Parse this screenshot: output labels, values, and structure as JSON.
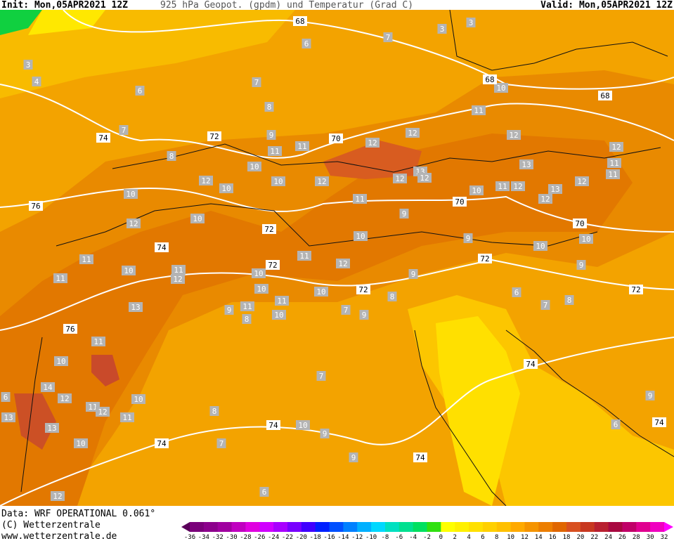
{
  "header": {
    "init": "Init: Mon,05APR2021 12Z",
    "title": "925 hPa Geopot. (gpdm) und Temperatur (Grad C)",
    "valid": "Valid: Mon,05APR2021 12Z"
  },
  "footer": {
    "data": "Data: WRF OPERATIONAL 0.061°",
    "copyright": "(C) Wetterzentrale",
    "url": "www.wetterzentrale.de"
  },
  "colorbar": {
    "labels": [
      -36,
      -34,
      -32,
      -30,
      -28,
      -26,
      -24,
      -22,
      -20,
      -18,
      -16,
      -14,
      -12,
      -10,
      -8,
      -6,
      -4,
      -2,
      0,
      2,
      4,
      6,
      8,
      10,
      12,
      14,
      16,
      18,
      20,
      22,
      24,
      26,
      28,
      30,
      32
    ]
  },
  "map": {
    "geopotential_labels": [
      68,
      68,
      68,
      74,
      72,
      70,
      76,
      74,
      72,
      72,
      72,
      70,
      70,
      72,
      72,
      76,
      74,
      74,
      74,
      74,
      74
    ],
    "temperature_labels": [
      7,
      6,
      3,
      3,
      3,
      4,
      6,
      7,
      8,
      7,
      8,
      9,
      11,
      11,
      12,
      12,
      11,
      10,
      12,
      12,
      11,
      11,
      13,
      12,
      13,
      12,
      11,
      12,
      10,
      13,
      12,
      12,
      12,
      11,
      10,
      10,
      10,
      12,
      10,
      10,
      12,
      9,
      10,
      9,
      10,
      10,
      9,
      11,
      12,
      10,
      10,
      11,
      12,
      10,
      11,
      11,
      9,
      8,
      10,
      11,
      10,
      7,
      9,
      9,
      11,
      8,
      13,
      6,
      7,
      8,
      11,
      10,
      14,
      12,
      7,
      10,
      11,
      12,
      11,
      13,
      13,
      8,
      10,
      9,
      7,
      10,
      9,
      6,
      9,
      6,
      12,
      6
    ]
  }
}
